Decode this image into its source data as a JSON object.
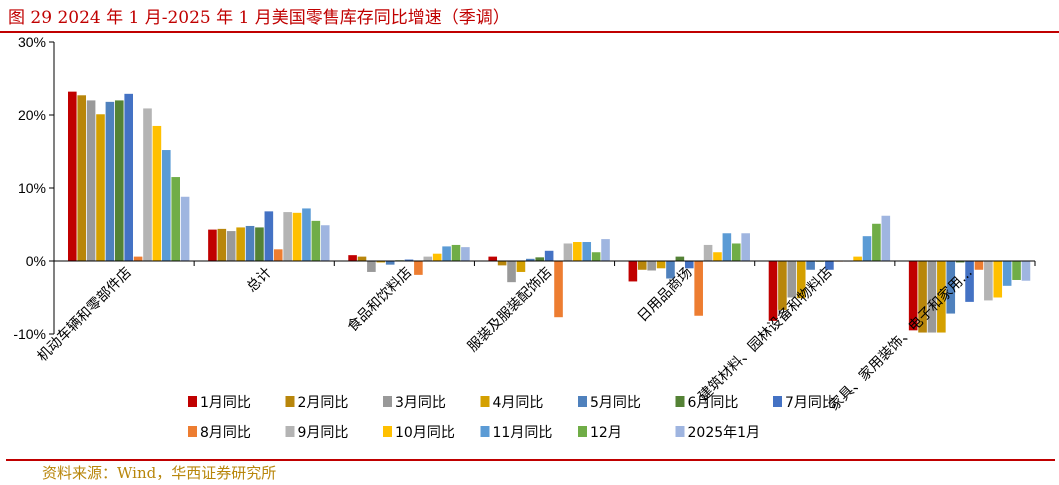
{
  "figure": {
    "title": "图 29   2024 年 1 月-2025 年 1 月美国零售库存同比增速（季调）",
    "source": "资料来源：Wind，华西证券研究所"
  },
  "chart_data": {
    "type": "bar",
    "title": "",
    "xlabel": "",
    "ylabel": "",
    "ylim": [
      -0.1,
      0.3
    ],
    "yticks": [
      "30%",
      "20%",
      "10%",
      "0%",
      "-10%"
    ],
    "ytick_values": [
      0.3,
      0.2,
      0.1,
      0.0,
      -0.1
    ],
    "grid": false,
    "legend_position": "bottom",
    "categories": [
      "机动车辆和零部件店",
      "总计",
      "食品和饮料店",
      "服装及服装配饰店",
      "日用品商场",
      "建筑材料、园林设备和物料店",
      "家具、家用装饰、电子和家用..."
    ],
    "series": [
      {
        "name": "1月同比",
        "color": "#c00000",
        "values": [
          0.232,
          0.043,
          0.008,
          0.006,
          -0.028,
          -0.082,
          -0.095
        ]
      },
      {
        "name": "2月同比",
        "color": "#b8860b",
        "values": [
          0.227,
          0.044,
          0.006,
          -0.006,
          -0.012,
          -0.067,
          -0.098
        ]
      },
      {
        "name": "3月同比",
        "color": "#999999",
        "values": [
          0.22,
          0.041,
          -0.015,
          -0.029,
          -0.013,
          -0.05,
          -0.098
        ]
      },
      {
        "name": "4月同比",
        "color": "#d4a000",
        "values": [
          0.201,
          0.046,
          -0.002,
          -0.015,
          -0.01,
          -0.051,
          -0.098
        ]
      },
      {
        "name": "5月同比",
        "color": "#4f81bd",
        "values": [
          0.218,
          0.048,
          -0.005,
          0.003,
          -0.024,
          -0.012,
          -0.072
        ]
      },
      {
        "name": "6月同比",
        "color": "#548235",
        "values": [
          0.22,
          0.046,
          0.001,
          0.005,
          0.006,
          -0.001,
          -0.002
        ]
      },
      {
        "name": "7月同比",
        "color": "#4472c4",
        "values": [
          0.229,
          0.068,
          0.002,
          0.014,
          -0.01,
          -0.012,
          -0.056
        ]
      },
      {
        "name": "8月同比",
        "color": "#ed7d31",
        "values": [
          0.006,
          0.016,
          -0.019,
          -0.077,
          -0.075,
          0.0,
          -0.012
        ]
      },
      {
        "name": "9月同比",
        "color": "#b4b4b4",
        "values": [
          0.209,
          0.067,
          0.006,
          0.024,
          0.022,
          0.0,
          -0.054
        ]
      },
      {
        "name": "10月同比",
        "color": "#ffc000",
        "values": [
          0.185,
          0.066,
          0.01,
          0.026,
          0.012,
          0.006,
          -0.05
        ]
      },
      {
        "name": "11月同比",
        "color": "#5b9bd5",
        "values": [
          0.152,
          0.072,
          0.02,
          0.026,
          0.038,
          0.034,
          -0.034
        ]
      },
      {
        "name": "12月",
        "color": "#70ad47",
        "values": [
          0.115,
          0.055,
          0.022,
          0.012,
          0.024,
          0.051,
          -0.026
        ]
      },
      {
        "name": "2025年1月",
        "color": "#9fb5e0",
        "values": [
          0.088,
          0.049,
          0.019,
          0.03,
          0.038,
          0.062,
          -0.027
        ]
      }
    ]
  }
}
